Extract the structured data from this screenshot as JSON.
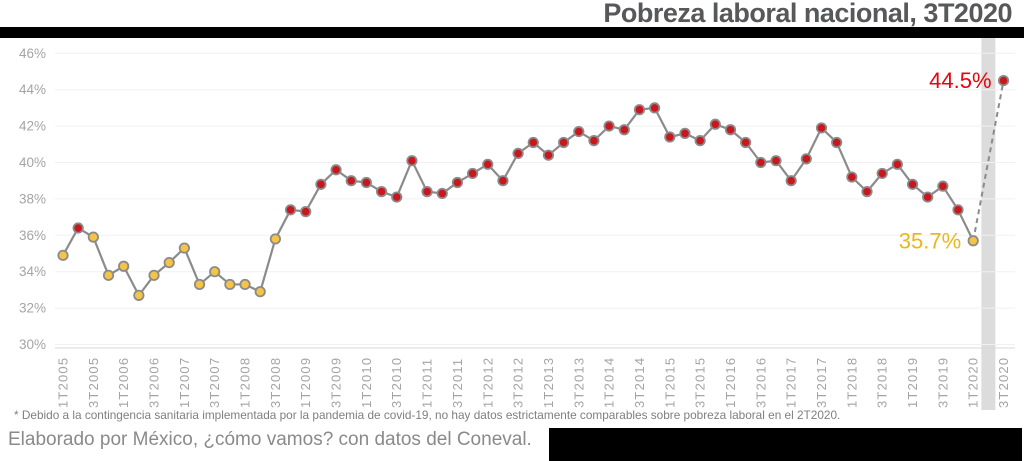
{
  "title": "Pobreza laboral nacional, 3T2020",
  "footnote": "* Debido a la contingencia sanitaria implementada por la pandemia de covid-19, no hay datos estrictamente comparables sobre pobreza laboral en el 2T2020.",
  "source_line": "Elaborado por México, ¿cómo vamos? con datos del Coneval.",
  "colors": {
    "red_dot": "#C8171D",
    "red_label": "#E5050F",
    "yellow_dot": "#F6C445",
    "yellow_label": "#EDB51D",
    "line": "#8B8B8B",
    "grid": "#F0F0F0",
    "axis_line": "#D8D8D8",
    "axis_text": "#A4A4A4",
    "band": "#DCDCDC",
    "title_text": "#57585A"
  },
  "chart_data": {
    "type": "line",
    "title": "Pobreza laboral nacional, 3T2020",
    "ylabel": "",
    "ylim": [
      30,
      46
    ],
    "ytick_step": 2,
    "yticks": [
      46,
      44,
      42,
      40,
      38,
      36,
      34,
      32,
      30
    ],
    "ytick_suffix": "%",
    "grid": true,
    "missing_quarter": "2T2020",
    "gap_before": "3T2020",
    "quarters": [
      "1T2005",
      "2T2005",
      "3T2005",
      "4T2005",
      "1T2006",
      "2T2006",
      "3T2006",
      "4T2006",
      "1T2007",
      "2T2007",
      "3T2007",
      "4T2007",
      "1T2008",
      "2T2008",
      "3T2008",
      "4T2008",
      "1T2009",
      "2T2009",
      "3T2009",
      "4T2009",
      "1T2010",
      "2T2010",
      "3T2010",
      "4T2010",
      "1T2011",
      "2T2011",
      "3T2011",
      "4T2011",
      "1T2012",
      "2T2012",
      "3T2012",
      "4T2012",
      "1T2013",
      "2T2013",
      "3T2013",
      "4T2013",
      "1T2014",
      "2T2014",
      "3T2014",
      "4T2014",
      "1T2015",
      "2T2015",
      "3T2015",
      "4T2015",
      "1T2016",
      "2T2016",
      "3T2016",
      "4T2016",
      "1T2017",
      "2T2017",
      "3T2017",
      "4T2017",
      "1T2018",
      "2T2018",
      "3T2018",
      "4T2018",
      "1T2019",
      "2T2019",
      "3T2019",
      "4T2019",
      "1T2020",
      "3T2020"
    ],
    "values": [
      34.9,
      36.4,
      35.9,
      33.8,
      34.3,
      32.7,
      33.8,
      34.5,
      35.3,
      33.3,
      34.0,
      33.3,
      33.3,
      32.9,
      35.8,
      37.4,
      37.3,
      38.8,
      39.6,
      39.0,
      38.9,
      38.4,
      38.1,
      40.1,
      38.4,
      38.3,
      38.9,
      39.4,
      39.9,
      39.0,
      40.5,
      41.1,
      40.4,
      41.1,
      41.7,
      41.2,
      42.0,
      41.8,
      42.9,
      43.0,
      41.4,
      41.6,
      41.2,
      42.1,
      41.8,
      41.1,
      40.0,
      40.1,
      39.0,
      40.2,
      41.9,
      41.1,
      39.2,
      38.4,
      39.4,
      39.9,
      38.8,
      38.1,
      38.7,
      37.4,
      35.7,
      44.5
    ],
    "yellow_quarters": [
      "1T2005",
      "3T2005",
      "4T2005",
      "1T2006",
      "2T2006",
      "3T2006",
      "4T2006",
      "1T2007",
      "2T2007",
      "3T2007",
      "4T2007",
      "1T2008",
      "2T2008",
      "3T2008",
      "1T2020"
    ],
    "callouts": [
      {
        "text": "44.5%",
        "quarter": "3T2020",
        "color_key": "red_label"
      },
      {
        "text": "35.7%",
        "quarter": "1T2020",
        "color_key": "yellow_label"
      }
    ]
  }
}
